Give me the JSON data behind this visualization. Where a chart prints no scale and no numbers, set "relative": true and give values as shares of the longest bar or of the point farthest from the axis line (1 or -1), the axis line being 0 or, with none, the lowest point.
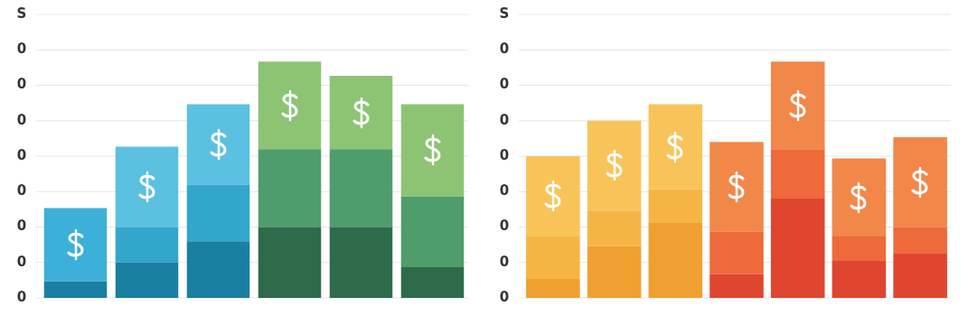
{
  "chart_data": [
    {
      "type": "bar",
      "stacked": true,
      "relative": true,
      "categories": [
        null,
        null,
        null,
        null,
        null,
        null
      ],
      "legend": false,
      "tick_labels": false,
      "annotations": [
        "S",
        "0",
        "0",
        "0",
        "0",
        "0",
        "0",
        "0",
        "0"
      ],
      "series": [
        {
          "colors": [
            "#1a7fa0",
            "#1a7fa0",
            "#1a7fa0",
            "#2e6b4a",
            "#2e6b4a",
            "#2e6b4a"
          ],
          "values": [
            0.07,
            0.15,
            0.24,
            0.3,
            0.3,
            0.13
          ]
        },
        {
          "colors": [
            "#3cb0d8",
            "#33a6cc",
            "#33a6cc",
            "#4f9d6b",
            "#4f9d6b",
            "#4f9d6b"
          ],
          "values": [
            0.31,
            0.15,
            0.24,
            0.33,
            0.33,
            0.3
          ]
        },
        {
          "colors": [
            "#5cc0e0",
            "#5cc0e0",
            "#5cc0e0",
            "#8cc474",
            "#8cc474",
            "#8cc474"
          ],
          "values": [
            null,
            0.34,
            0.34,
            0.37,
            0.31,
            0.39
          ]
        }
      ]
    },
    {
      "type": "bar",
      "stacked": true,
      "relative": true,
      "categories": [
        null,
        null,
        null,
        null,
        null,
        null,
        null
      ],
      "legend": false,
      "tick_labels": false,
      "annotations": [
        "S",
        "0",
        "0",
        "0",
        "0",
        "0",
        "0",
        "0",
        "0"
      ],
      "series": [
        {
          "colors": [
            "#f0a030",
            "#f0a030",
            "#f0a030",
            "#e04530",
            "#e04530",
            "#e04530",
            "#e04530"
          ],
          "values": [
            0.08,
            0.22,
            0.32,
            0.1,
            0.42,
            0.16,
            0.19
          ]
        },
        {
          "colors": [
            "#f5b545",
            "#f5b545",
            "#f5b545",
            "#ee6a3a",
            "#ee6a3a",
            "#ee6a3a",
            "#ee6a3a"
          ],
          "values": [
            0.18,
            0.15,
            0.14,
            0.18,
            0.21,
            0.1,
            0.11
          ]
        },
        {
          "colors": [
            "#f8c45a",
            "#f8c45a",
            "#f8c45a",
            "#f2874a",
            "#f2874a",
            "#f2874a",
            "#f2874a"
          ],
          "values": [
            0.34,
            0.38,
            0.36,
            0.38,
            0.37,
            0.33,
            0.38
          ]
        }
      ]
    }
  ]
}
